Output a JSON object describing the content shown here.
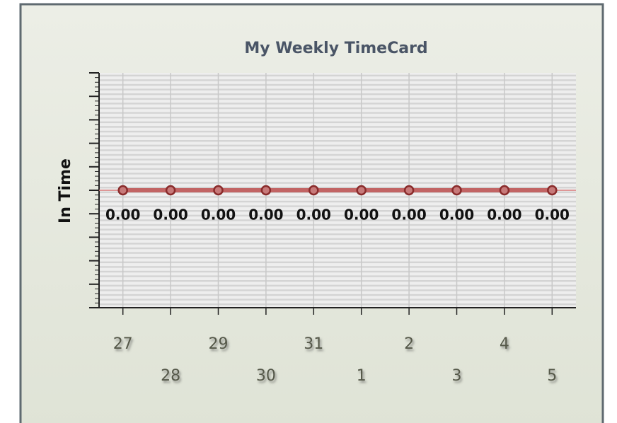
{
  "chart_data": {
    "type": "line",
    "title": "My Weekly TimeCard",
    "ylabel": "In Time",
    "categories": [
      "27",
      "28",
      "29",
      "30",
      "31",
      "1",
      "2",
      "3",
      "4",
      "5"
    ],
    "series": [
      {
        "color": "#c26464",
        "values": [
          0,
          0,
          0,
          0,
          0,
          0,
          0,
          0,
          0,
          0
        ],
        "value_labels": [
          "0.00",
          "0.00",
          "0.00",
          "0.00",
          "0.00",
          "0.00",
          "0.00",
          "0.00",
          "0.00",
          "0.00"
        ]
      }
    ],
    "ylim": [
      -1,
      1
    ],
    "yticks": [
      -1,
      -0.8,
      -0.6,
      -0.4,
      -0.2,
      0,
      0.2,
      0.4,
      0.6,
      0.8,
      1
    ],
    "grid": true
  }
}
